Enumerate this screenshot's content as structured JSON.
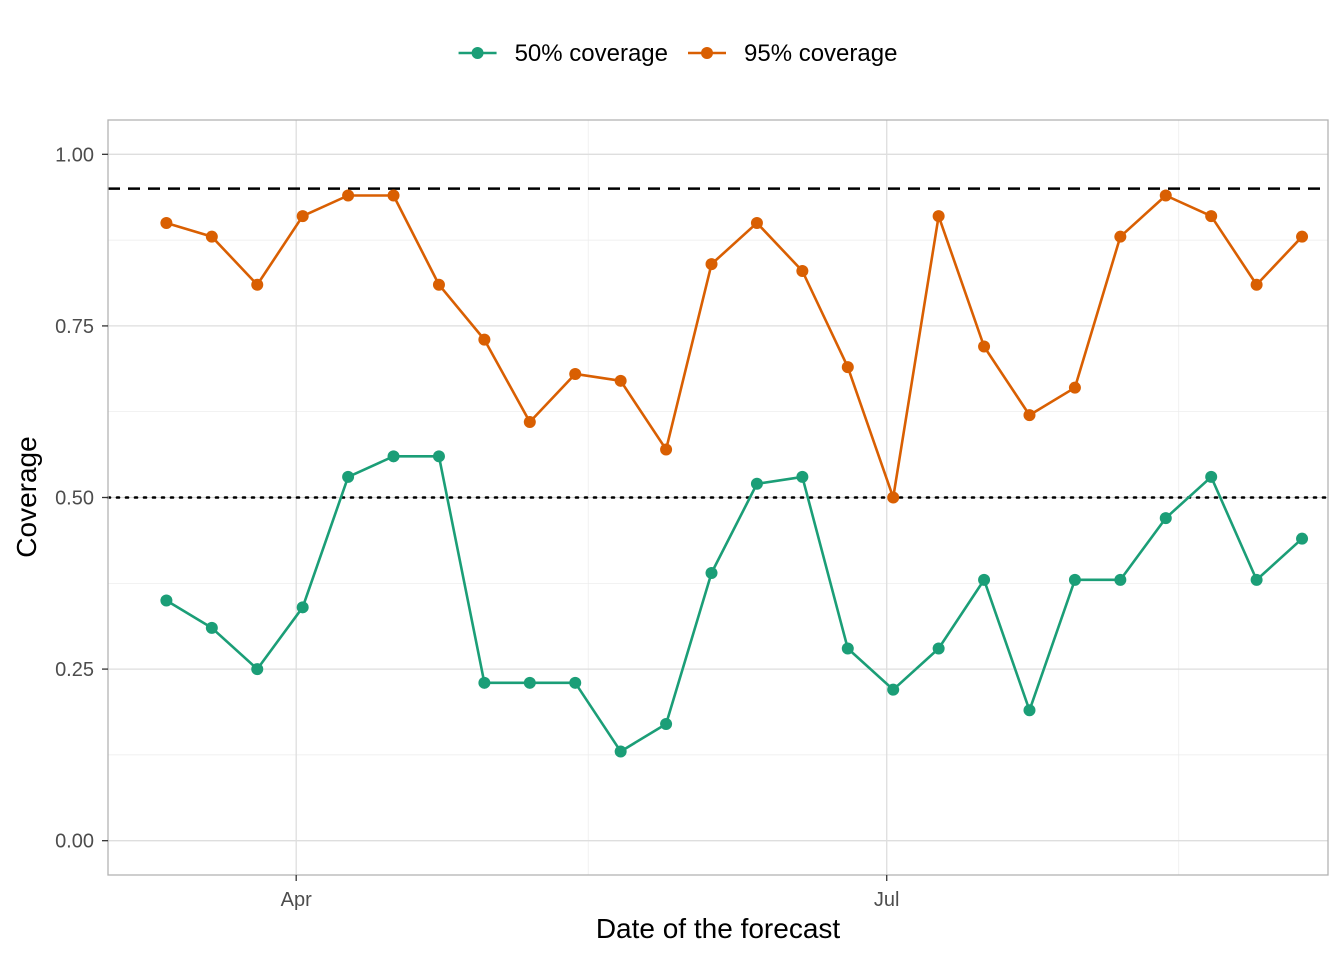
{
  "chart_data": {
    "type": "line",
    "xlabel": "Date of the forecast",
    "ylabel": "Coverage",
    "ylim": [
      -0.05,
      1.05
    ],
    "y_ticks": [
      0.0,
      0.25,
      0.5,
      0.75,
      1.0
    ],
    "y_tick_labels": [
      "0.00",
      "0.25",
      "0.50",
      "0.75",
      "1.00"
    ],
    "x_range": [
      "2023-03-03",
      "2023-09-07"
    ],
    "x_ticks": [
      "2023-04-01",
      "2023-07-01"
    ],
    "x_tick_labels": [
      "Apr",
      "Jul"
    ],
    "x_minor_ticks": [
      "2023-05-16",
      "2023-08-15"
    ],
    "x": [
      "2023-03-12",
      "2023-03-19",
      "2023-03-26",
      "2023-04-02",
      "2023-04-09",
      "2023-04-16",
      "2023-04-23",
      "2023-04-30",
      "2023-05-07",
      "2023-05-14",
      "2023-05-21",
      "2023-05-28",
      "2023-06-04",
      "2023-06-11",
      "2023-06-18",
      "2023-06-25",
      "2023-07-02",
      "2023-07-09",
      "2023-07-16",
      "2023-07-23",
      "2023-07-30",
      "2023-08-06",
      "2023-08-13",
      "2023-08-20",
      "2023-08-27",
      "2023-09-03"
    ],
    "series": [
      {
        "name": "50% coverage",
        "color": "#1b9e77",
        "values": [
          0.35,
          0.31,
          0.25,
          0.34,
          0.53,
          0.56,
          0.56,
          0.23,
          0.23,
          0.23,
          0.13,
          0.17,
          0.39,
          0.52,
          0.53,
          0.28,
          0.22,
          0.28,
          0.38,
          0.19,
          0.38,
          0.38,
          0.47,
          0.53,
          0.38,
          0.44
        ]
      },
      {
        "name": "95% coverage",
        "color": "#d95f02",
        "values": [
          0.9,
          0.88,
          0.81,
          0.91,
          0.94,
          0.94,
          0.81,
          0.73,
          0.61,
          0.68,
          0.67,
          0.57,
          0.84,
          0.9,
          0.83,
          0.69,
          0.5,
          0.91,
          0.72,
          0.62,
          0.66,
          0.88,
          0.94,
          0.91,
          0.81,
          0.88
        ]
      }
    ],
    "reference_lines": [
      {
        "y": 0.95,
        "style": "dashed"
      },
      {
        "y": 0.5,
        "style": "dotted"
      }
    ],
    "grid": true,
    "legend_position": "top"
  }
}
